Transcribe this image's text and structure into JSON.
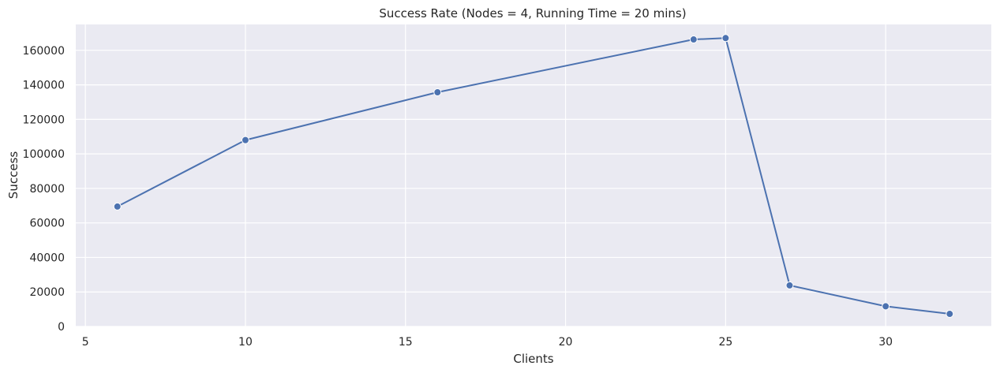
{
  "chart_data": {
    "type": "line",
    "title": "Success Rate (Nodes = 4, Running Time = 20 mins)",
    "xlabel": "Clients",
    "ylabel": "Success",
    "xlim": [
      4.7,
      33.3
    ],
    "ylim": [
      0,
      175000
    ],
    "x_ticks": [
      5,
      10,
      15,
      20,
      25,
      30
    ],
    "y_ticks": [
      0,
      20000,
      40000,
      60000,
      80000,
      100000,
      120000,
      140000,
      160000
    ],
    "grid": true,
    "series": [
      {
        "x": [
          6,
          10,
          16,
          24,
          25,
          27,
          30,
          32
        ],
        "values": [
          69500,
          108000,
          135700,
          166300,
          167100,
          23800,
          11700,
          7300
        ],
        "color": "#4c72b0",
        "marker": "circle"
      }
    ]
  },
  "colors": {
    "plot_background": "#eaeaf2",
    "grid": "#ffffff",
    "line": "#4c72b0"
  }
}
